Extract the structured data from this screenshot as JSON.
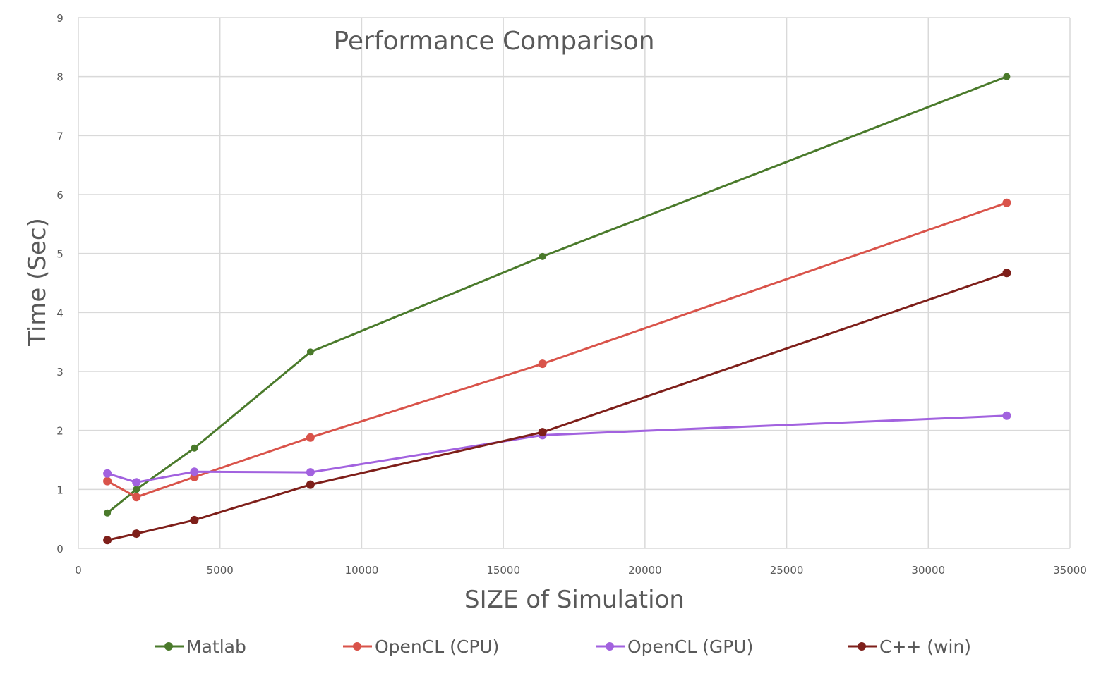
{
  "chart_data": {
    "type": "line",
    "title": "Performance Comparison",
    "xlabel": "SIZE of Simulation",
    "ylabel": "Time (Sec)",
    "xlim": [
      0,
      35000
    ],
    "ylim": [
      0,
      9
    ],
    "x_ticks": [
      0,
      5000,
      10000,
      15000,
      20000,
      25000,
      30000,
      35000
    ],
    "y_ticks": [
      0,
      1,
      2,
      3,
      4,
      5,
      6,
      7,
      8,
      9
    ],
    "grid": true,
    "legend_position": "bottom",
    "x": [
      1024,
      2048,
      4096,
      8192,
      16384,
      32768
    ],
    "series": [
      {
        "name": "Matlab",
        "color": "#4a7a2b",
        "values": [
          0.6,
          1.0,
          1.7,
          3.33,
          4.95,
          8.0
        ]
      },
      {
        "name": "OpenCL (CPU)",
        "color": "#d9534a",
        "values": [
          1.14,
          0.87,
          1.21,
          1.88,
          3.13,
          5.86
        ]
      },
      {
        "name": "OpenCL (GPU)",
        "color": "#a262df",
        "values": [
          1.27,
          1.12,
          1.3,
          1.29,
          1.92,
          2.25
        ]
      },
      {
        "name": "C++ (win)",
        "color": "#7e1f1a",
        "values": [
          0.14,
          0.25,
          0.48,
          1.08,
          1.97,
          4.67
        ]
      }
    ]
  }
}
